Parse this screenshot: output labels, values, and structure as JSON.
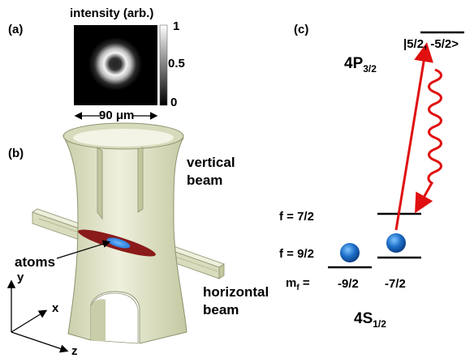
{
  "panel_a": {
    "label": "(a)",
    "title": "intensity (arb.)",
    "colorbar_ticks": [
      "1",
      "0.5",
      "0"
    ],
    "scale_text": "90 μm"
  },
  "panel_b": {
    "label": "(b)",
    "vertical_beam_line1": "vertical",
    "vertical_beam_line2": "beam",
    "horizontal_beam_line1": "horizontal",
    "horizontal_beam_line2": "beam",
    "atoms": "atoms",
    "axis_x": "x",
    "axis_y": "y",
    "axis_z": "z",
    "colors": {
      "beam": "#e3e6cc",
      "beam_shadow": "#b9bd99",
      "cloud_outer": "#8b1a1a",
      "cloud_inner": "#3a8be0"
    }
  },
  "panel_c": {
    "label": "(c)",
    "excited_state": "4P",
    "excited_sub": "3/2",
    "excited_level": "|5/2, -5/2>",
    "f72": "f = 7/2",
    "f92": "f = 9/2",
    "mf_main": "m",
    "mf_sub": "f",
    "mf_eq": " =",
    "mf_values": [
      "-9/2",
      "-7/2"
    ],
    "ground_state": "4S",
    "ground_sub": "1/2",
    "colors": {
      "transition": "#e01010",
      "atom": "#2a7fd4"
    }
  }
}
